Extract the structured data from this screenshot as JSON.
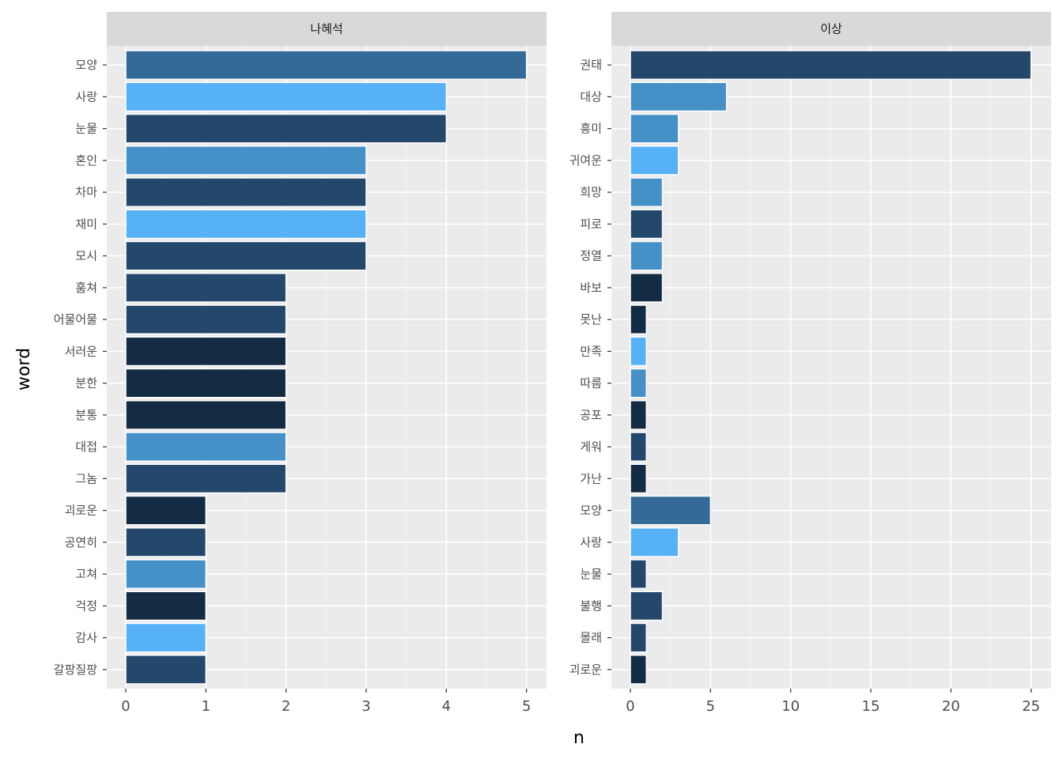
{
  "chart_data": {
    "type": "bar",
    "orientation": "horizontal",
    "xlabel": "n",
    "ylabel": "word",
    "grid": true,
    "panels": [
      {
        "title": "나혜석",
        "xlim": [
          0,
          5.25
        ],
        "xticks": [
          0,
          1,
          2,
          3,
          4,
          5
        ],
        "categories": [
          "모양",
          "사랑",
          "눈물",
          "혼인",
          "차마",
          "재미",
          "모시",
          "훔쳐",
          "어물어물",
          "서러운",
          "분한",
          "분통",
          "대접",
          "그놈",
          "괴로운",
          "공연히",
          "고쳐",
          "걱정",
          "감사",
          "갈팡질팡"
        ],
        "values": [
          5,
          4,
          4,
          3,
          3,
          3,
          3,
          2,
          2,
          2,
          2,
          2,
          2,
          2,
          1,
          1,
          1,
          1,
          1,
          1
        ],
        "colors": [
          "#336a98",
          "#56b1f7",
          "#23486b",
          "#4690c8",
          "#23486b",
          "#56b1f7",
          "#23486b",
          "#23486b",
          "#23486b",
          "#132b43",
          "#132b43",
          "#132b43",
          "#4690c8",
          "#23486b",
          "#132b43",
          "#23486b",
          "#4690c8",
          "#132b43",
          "#56b1f7",
          "#23486b"
        ]
      },
      {
        "title": "이상",
        "xlim": [
          0,
          26.25
        ],
        "xticks": [
          0,
          5,
          10,
          15,
          20,
          25
        ],
        "categories": [
          "권태",
          "대상",
          "흥미",
          "귀여운",
          "희망",
          "피로",
          "정열",
          "바보",
          "못난",
          "만족",
          "따름",
          "공포",
          "게워",
          "가난",
          "모양",
          "사랑",
          "눈물",
          "불행",
          "몰래",
          "괴로운"
        ],
        "values": [
          25,
          6,
          3,
          3,
          2,
          2,
          2,
          2,
          1,
          1,
          1,
          1,
          1,
          1,
          5,
          3,
          1,
          2,
          1,
          1
        ],
        "colors": [
          "#23486b",
          "#4690c8",
          "#4690c8",
          "#56b1f7",
          "#4690c8",
          "#23486b",
          "#4690c8",
          "#132b43",
          "#132b43",
          "#56b1f7",
          "#4690c8",
          "#132b43",
          "#23486b",
          "#132b43",
          "#336a98",
          "#56b1f7",
          "#23486b",
          "#23486b",
          "#23486b",
          "#132b43"
        ]
      }
    ]
  }
}
